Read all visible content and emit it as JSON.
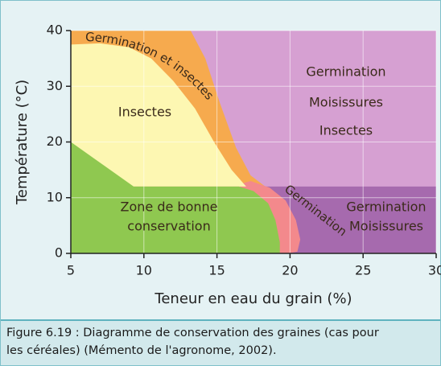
{
  "chart_data": {
    "type": "region",
    "xlabel": "Teneur en eau du grain  (%)",
    "ylabel": "Température  (°C)",
    "xlim": [
      5,
      30
    ],
    "xticks": [
      5,
      10,
      15,
      20,
      25,
      30
    ],
    "ylim": [
      0,
      40
    ],
    "yticks": [
      0,
      10,
      20,
      30,
      40
    ],
    "grid": true,
    "regions": [
      {
        "lines": [
          "Germination",
          "Moisissures",
          "Insectes"
        ],
        "color": "#d6a0d2",
        "points": [
          [
            5,
            0
          ],
          [
            30,
            0
          ],
          [
            30,
            40
          ],
          [
            5,
            40
          ]
        ]
      },
      {
        "lines": [
          "Germination",
          "Moisissures"
        ],
        "color": "#a66aae",
        "points": [
          [
            17.5,
            12
          ],
          [
            30,
            12
          ],
          [
            30,
            0
          ],
          [
            20,
            0
          ]
        ]
      },
      {
        "lines": [
          "Germination et insectes"
        ],
        "color": "#f6aa4e",
        "points": [
          [
            5,
            40
          ],
          [
            13.2,
            40
          ],
          [
            14.2,
            35
          ],
          [
            15.2,
            27
          ],
          [
            16.3,
            19
          ],
          [
            17.3,
            14
          ],
          [
            18.3,
            12
          ],
          [
            5,
            12
          ]
        ]
      },
      {
        "lines": [
          "Germination"
        ],
        "color": "#f3898c",
        "points": [
          [
            16,
            12
          ],
          [
            17.3,
            13
          ],
          [
            18.6,
            11.8
          ],
          [
            19.7,
            9.5
          ],
          [
            20.4,
            6
          ],
          [
            20.7,
            2.5
          ],
          [
            20.5,
            0.3
          ],
          [
            19.8,
            0
          ],
          [
            5,
            0
          ],
          [
            5,
            12
          ]
        ]
      },
      {
        "lines": [
          "Insectes"
        ],
        "color": "#fdf7b2",
        "points": [
          [
            5,
            37.5
          ],
          [
            7,
            37.7
          ],
          [
            9,
            37
          ],
          [
            10.5,
            35
          ],
          [
            12,
            31
          ],
          [
            13.5,
            26
          ],
          [
            14.8,
            20
          ],
          [
            16,
            15
          ],
          [
            17,
            12
          ],
          [
            5,
            12
          ]
        ]
      },
      {
        "lines": [
          "Zone de bonne",
          "conservation"
        ],
        "color": "#8fc850",
        "points": [
          [
            5,
            20
          ],
          [
            9.3,
            12
          ],
          [
            16.5,
            12
          ],
          [
            17.5,
            11.2
          ],
          [
            18.5,
            9
          ],
          [
            19,
            6
          ],
          [
            19.3,
            2
          ],
          [
            19.3,
            0
          ],
          [
            5,
            0
          ]
        ]
      }
    ],
    "caption": [
      "Figure 6.19 : Diagramme de conservation des graines (cas pour",
      "les céréales) (Mémento de l'agronome, 2002)."
    ]
  }
}
